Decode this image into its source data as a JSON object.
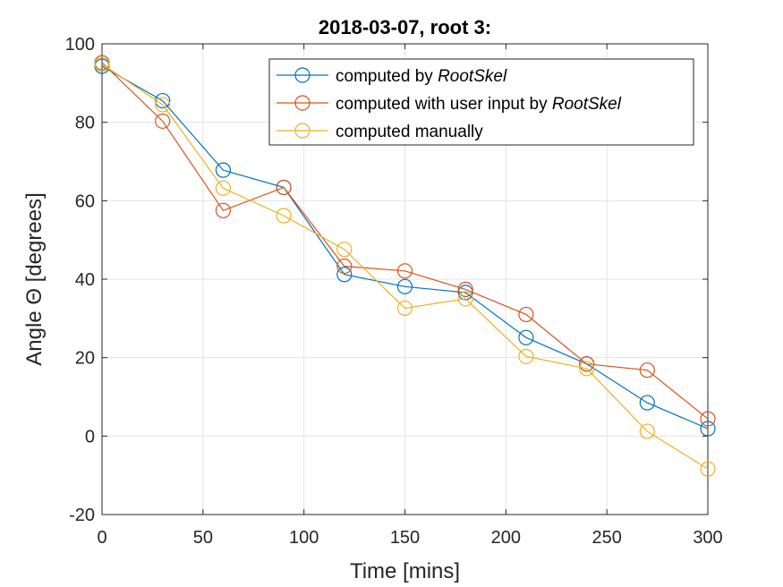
{
  "chart_data": {
    "type": "line",
    "title": "2018-03-07, root 3:",
    "xlabel": "Time [mins]",
    "ylabel": "Angle Θ [degrees]",
    "xlim": [
      0,
      300
    ],
    "ylim": [
      -20,
      100
    ],
    "xticks": [
      0,
      50,
      100,
      150,
      200,
      250,
      300
    ],
    "yticks": [
      -20,
      0,
      20,
      40,
      60,
      80,
      100
    ],
    "grid": true,
    "legend_position": "top-right",
    "x": [
      0,
      30,
      60,
      90,
      120,
      150,
      180,
      210,
      240,
      270,
      300
    ],
    "series": [
      {
        "name_prefix": "computed by ",
        "name_italic": "RootSkel",
        "color": "#0072BD",
        "values": [
          94.3,
          85.5,
          67.8,
          63.4,
          41.2,
          38.1,
          36.6,
          25.1,
          18.4,
          8.5,
          1.9
        ]
      },
      {
        "name_prefix": "computed with user input by ",
        "name_italic": "RootSkel",
        "color": "#D95319",
        "values": [
          95.2,
          80.3,
          57.5,
          63.4,
          43.3,
          42.1,
          37.4,
          31.0,
          18.4,
          16.8,
          4.4
        ]
      },
      {
        "name_prefix": "computed manually",
        "name_italic": "",
        "color": "#EDB120",
        "values": [
          94.8,
          84.5,
          63.2,
          56.2,
          47.6,
          32.6,
          35.0,
          20.3,
          17.2,
          1.2,
          -8.4
        ]
      }
    ]
  }
}
